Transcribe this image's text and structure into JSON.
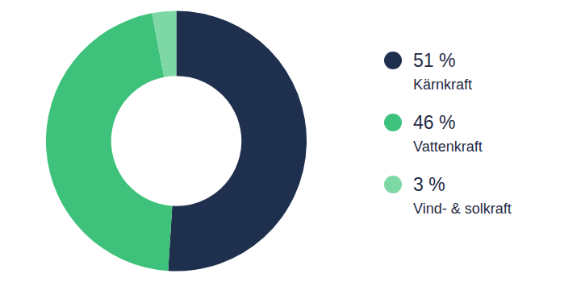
{
  "chart_data": {
    "type": "pie",
    "categories": [
      "Kärnkraft",
      "Vattenkraft",
      "Vind- & solkraft"
    ],
    "values": [
      51,
      46,
      3
    ],
    "value_labels": [
      "51 %",
      "46 %",
      "3 %"
    ],
    "colors": [
      "#1f2f4e",
      "#3ec27b",
      "#7ed8a6"
    ],
    "legend": "right"
  }
}
